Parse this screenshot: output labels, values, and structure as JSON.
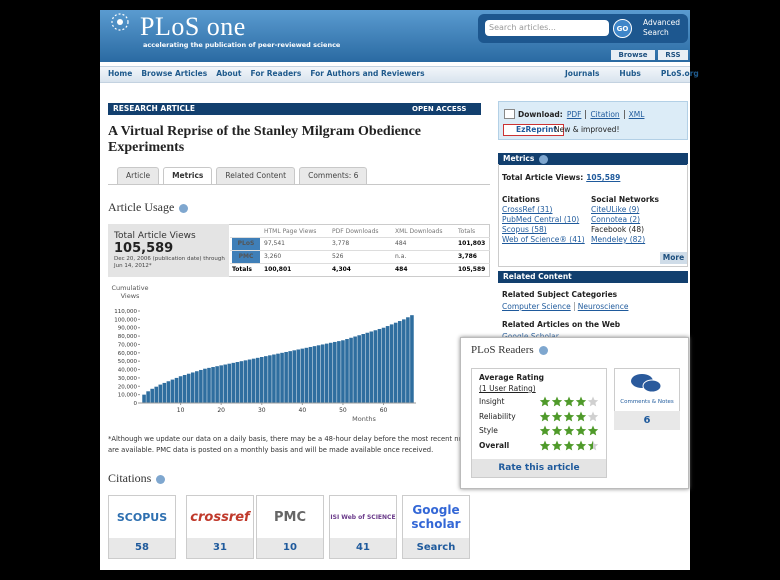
{
  "header": {
    "logo": "PLoS one",
    "tagline": "accelerating the publication of peer-reviewed science",
    "search_placeholder": "Search articles...",
    "search_button": "GO",
    "advanced_search": "Advanced Search",
    "browse": "Browse",
    "rss": "RSS"
  },
  "nav": {
    "left": [
      "Home",
      "Browse Articles",
      "About",
      "For Readers",
      "For Authors and Reviewers"
    ],
    "right": [
      "Journals",
      "Hubs",
      "PLoS.org"
    ]
  },
  "article": {
    "type_label": "RESEARCH ARTICLE",
    "open_access": "OPEN ACCESS",
    "title": "A Virtual Reprise of the Stanley Milgram Obedience Experiments",
    "tabs": [
      "Article",
      "Metrics",
      "Related Content",
      "Comments: 6"
    ]
  },
  "usage": {
    "heading": "Article Usage",
    "total_label": "Total Article Views",
    "total": "105,589",
    "date_note": "Dec 20, 2006 (publication date) through Jun 14, 2012*",
    "table": {
      "headers": [
        "HTML Page Views",
        "PDF Downloads",
        "XML Downloads",
        "Totals"
      ],
      "rows": [
        [
          "PLoS",
          "97,541",
          "3,778",
          "484",
          "101,803"
        ],
        [
          "PMC",
          "3,260",
          "526",
          "n.a.",
          "3,786"
        ],
        [
          "Totals",
          "100,801",
          "4,304",
          "484",
          "105,589"
        ]
      ]
    },
    "footnote": [
      "*Although we update our data on a daily basis, there may be a 48-hour delay before the most recent numbers",
      "are available. PMC data is posted on a monthly basis and will be made available once received."
    ]
  },
  "chart_data": {
    "type": "bar",
    "y_label": "Cumulative Views",
    "x_label": "Months",
    "color": "#2f6e9f",
    "x": [
      1,
      2,
      3,
      4,
      5,
      6,
      7,
      8,
      9,
      10,
      11,
      12,
      13,
      14,
      15,
      16,
      17,
      18,
      19,
      20,
      21,
      22,
      23,
      24,
      25,
      26,
      27,
      28,
      29,
      30,
      31,
      32,
      33,
      34,
      35,
      36,
      37,
      38,
      39,
      40,
      41,
      42,
      43,
      44,
      45,
      46,
      47,
      48,
      49,
      50,
      51,
      52,
      53,
      54,
      55,
      56,
      57,
      58,
      59,
      60,
      61,
      62,
      63,
      64,
      65,
      66,
      67
    ],
    "values": [
      10000,
      14000,
      17000,
      19500,
      22000,
      24000,
      26000,
      28000,
      30000,
      32000,
      33500,
      35000,
      36500,
      38000,
      39500,
      41000,
      42000,
      43000,
      44000,
      45000,
      46000,
      47000,
      48000,
      49000,
      50000,
      51000,
      52000,
      53000,
      54000,
      55000,
      56000,
      57000,
      58000,
      59000,
      60000,
      61000,
      62000,
      63000,
      64000,
      65000,
      66000,
      67000,
      68000,
      69000,
      70000,
      71000,
      72000,
      73000,
      74000,
      75000,
      76500,
      78000,
      79500,
      81000,
      82500,
      84000,
      85500,
      87000,
      88500,
      90000,
      92000,
      94000,
      96000,
      98000,
      100000,
      102500,
      105000
    ],
    "xlim": [
      0,
      68
    ],
    "xticks": [
      10,
      20,
      30,
      40,
      50,
      60
    ],
    "ylim": [
      0,
      110000
    ],
    "yticks": [
      0,
      {
        "value": 10000,
        "label": "10,000"
      },
      {
        "value": 20000,
        "label": "20,000"
      },
      {
        "value": 30000,
        "label": "30,000"
      },
      {
        "value": 40000,
        "label": "40,000"
      },
      {
        "value": 50000,
        "label": "50,000"
      },
      {
        "value": 60000,
        "label": "60,000"
      },
      {
        "value": 70000,
        "label": "70,000"
      },
      {
        "value": 80000,
        "label": "80,000"
      },
      {
        "value": 90000,
        "label": "90,000"
      },
      {
        "value": 100000,
        "label": "100,000"
      },
      {
        "value": 110000,
        "label": "110,000"
      }
    ]
  },
  "citations": {
    "heading": "Citations",
    "items": [
      {
        "logo": "SCOPUS",
        "count": "58"
      },
      {
        "logo": "crossref",
        "count": "31"
      },
      {
        "logo": "PMC",
        "count": "10"
      },
      {
        "logo": "ISI Web of SCIENCE",
        "count": "41"
      },
      {
        "logo": "Google scholar",
        "count": "Search"
      }
    ]
  },
  "sidebar": {
    "download_label": "Download:",
    "download_links": [
      "PDF",
      "Citation",
      "XML"
    ],
    "ezreprint": "EzReprint",
    "ezreprint_note": "New & improved!",
    "metrics": {
      "heading": "Metrics",
      "total_label": "Total Article Views:",
      "total": "105,589",
      "citations_heading": "Citations",
      "citations": [
        "CrossRef (31)",
        "PubMed Central (10)",
        "Scopus (58)",
        "Web of Science® (41)"
      ],
      "social_heading": "Social Networks",
      "social": [
        "CiteULike (9)",
        "Connotea (2)",
        "Facebook (48)",
        "Mendeley (82)"
      ],
      "more": "More"
    },
    "related": {
      "heading": "Related Content",
      "subject_heading": "Related Subject Categories",
      "subjects": [
        "Computer Science",
        "Neuroscience"
      ],
      "web_heading": "Related Articles on the Web",
      "web_links": [
        "Google Scholar"
      ]
    }
  },
  "readers": {
    "heading": "PLoS Readers",
    "average_label": "Average Rating",
    "rating_count": "(1 User Rating)",
    "criteria": [
      {
        "label": "Insight",
        "rating": 4
      },
      {
        "label": "Reliability",
        "rating": 4
      },
      {
        "label": "Style",
        "rating": 5
      },
      {
        "label": "Overall",
        "rating": 4.5
      }
    ],
    "rate_button": "Rate this article",
    "comments_label": "Comments & Notes",
    "comments_count": "6"
  }
}
